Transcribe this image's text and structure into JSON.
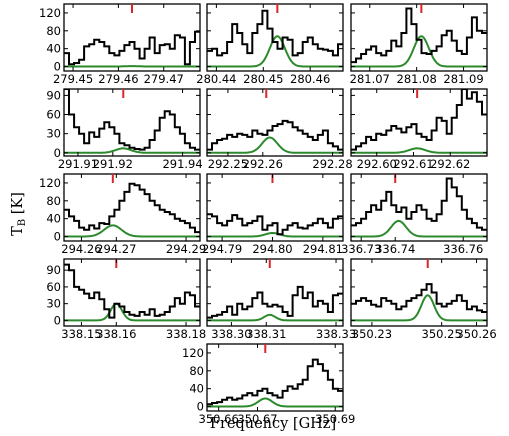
{
  "figure": {
    "ylabel_main": "T",
    "ylabel_sub": "B",
    "ylabel_unit": " [K]",
    "xlabel": "Frequency [GHz]"
  },
  "colors": {
    "spectrum": "#000000",
    "fit": "#2c8a2c",
    "marker": "#d8262c"
  },
  "chart_data": [
    {
      "type": "line",
      "xlim": [
        279.448,
        279.478
      ],
      "ylim": [
        -10,
        140
      ],
      "xticks": [
        "279.45",
        "279.46",
        "279.47"
      ],
      "yticks": [
        0,
        40,
        80,
        120
      ],
      "marker": 279.463,
      "fit": {
        "center": 279.463,
        "amp": 1,
        "width": 0.0015
      },
      "spectrum": [
        30,
        5,
        8,
        15,
        45,
        50,
        60,
        55,
        45,
        30,
        25,
        35,
        48,
        55,
        40,
        18,
        40,
        65,
        30,
        48,
        50,
        40,
        70,
        65,
        5,
        55,
        78
      ]
    },
    {
      "type": "line",
      "xlim": [
        280.438,
        280.467
      ],
      "ylim": [
        -10,
        140
      ],
      "marker": 280.453,
      "xticks": [
        "280.44",
        "280.45",
        "280.46"
      ],
      "yticks": [
        0,
        40,
        80,
        120
      ],
      "fit": {
        "center": 280.453,
        "amp": 68,
        "width": 0.0016
      },
      "spectrum": [
        35,
        40,
        25,
        30,
        55,
        95,
        75,
        50,
        30,
        75,
        95,
        125,
        85,
        55,
        40,
        65,
        60,
        25,
        30,
        55,
        65,
        50,
        40,
        38,
        35,
        25,
        50
      ]
    },
    {
      "type": "line",
      "xlim": [
        281.066,
        281.095
      ],
      "ylim": [
        -10,
        140
      ],
      "marker": 281.081,
      "xticks": [
        "281.07",
        "281.08",
        "281.09"
      ],
      "yticks": [
        0,
        40,
        80,
        120
      ],
      "fit": {
        "center": 281.081,
        "amp": 68,
        "width": 0.0016
      },
      "spectrum": [
        10,
        18,
        28,
        38,
        45,
        30,
        25,
        35,
        58,
        45,
        75,
        130,
        95,
        60,
        30,
        28,
        35,
        45,
        70,
        80,
        58,
        35,
        28,
        65,
        110,
        80,
        75
      ]
    },
    {
      "type": "line",
      "xlim": [
        291.906,
        291.945
      ],
      "ylim": [
        -5,
        100
      ],
      "marker": 291.923,
      "xticks": [
        "291.91",
        "291.92",
        "291.94"
      ],
      "yticks": [
        0,
        30,
        60,
        90
      ],
      "fit": {
        "center": 291.923,
        "amp": 7,
        "width": 0.0022
      },
      "spectrum": [
        100,
        60,
        40,
        30,
        15,
        32,
        25,
        38,
        48,
        40,
        30,
        15,
        12,
        8,
        6,
        5,
        8,
        20,
        35,
        55,
        65,
        60,
        40,
        30,
        15,
        8,
        5
      ]
    },
    {
      "type": "line",
      "xlim": [
        292.244,
        292.283
      ],
      "ylim": [
        -5,
        100
      ],
      "marker": 292.261,
      "xticks": [
        "292.25",
        "292.26",
        "292.28"
      ],
      "yticks": [
        0,
        30,
        60,
        90
      ],
      "fit": {
        "center": 292.262,
        "amp": 24,
        "width": 0.0022
      },
      "spectrum": [
        5,
        15,
        20,
        22,
        28,
        25,
        30,
        28,
        25,
        35,
        30,
        28,
        35,
        42,
        45,
        50,
        48,
        40,
        35,
        30,
        25,
        20,
        28,
        35,
        15,
        10,
        5
      ]
    },
    {
      "type": "line",
      "xlim": [
        292.593,
        292.63
      ],
      "ylim": [
        -5,
        100
      ],
      "marker": 292.611,
      "xticks": [
        "292.60",
        "292.61",
        "292.62"
      ],
      "yticks": [
        0,
        30,
        60,
        90
      ],
      "fit": {
        "center": 292.611,
        "amp": 7,
        "width": 0.0022
      },
      "spectrum": [
        5,
        10,
        15,
        25,
        20,
        30,
        28,
        35,
        42,
        38,
        32,
        40,
        45,
        30,
        25,
        20,
        35,
        55,
        50,
        30,
        55,
        75,
        100,
        85,
        95,
        80,
        60
      ]
    },
    {
      "type": "line",
      "xlim": [
        294.255,
        294.294
      ],
      "ylim": [
        -10,
        140
      ],
      "marker": 294.269,
      "xticks": [
        "294.26",
        "294.27",
        "294.29"
      ],
      "yticks": [
        0,
        40,
        80,
        120
      ],
      "fit": {
        "center": 294.269,
        "amp": 25,
        "width": 0.0025
      },
      "spectrum": [
        60,
        45,
        35,
        20,
        15,
        25,
        18,
        30,
        28,
        45,
        60,
        80,
        100,
        118,
        115,
        105,
        95,
        80,
        70,
        60,
        55,
        50,
        40,
        35,
        30,
        20,
        10
      ]
    },
    {
      "type": "line",
      "xlim": [
        294.787,
        294.814
      ],
      "ylim": [
        -10,
        140
      ],
      "marker": 294.8,
      "xticks": [
        "294.79",
        "294.80",
        "294.81"
      ],
      "yticks": [
        0,
        40,
        80,
        120
      ],
      "fit": {
        "center": 294.8,
        "amp": 8,
        "width": 0.0014
      },
      "spectrum": [
        50,
        45,
        30,
        25,
        35,
        48,
        40,
        25,
        30,
        35,
        45,
        15,
        25,
        30,
        5,
        15,
        25,
        30,
        20,
        18,
        25,
        30,
        40,
        30,
        20,
        40,
        45
      ]
    },
    {
      "type": "line",
      "xlim": [
        336.727,
        336.767
      ],
      "ylim": [
        -10,
        140
      ],
      "marker": 336.74,
      "xticks": [
        "336.73",
        "336.74",
        "336.76"
      ],
      "yticks": [
        0,
        40,
        80,
        120
      ],
      "fit": {
        "center": 336.741,
        "amp": 35,
        "width": 0.0022
      },
      "spectrum": [
        25,
        30,
        40,
        55,
        70,
        60,
        80,
        100,
        70,
        55,
        65,
        40,
        55,
        70,
        60,
        40,
        35,
        50,
        80,
        130,
        110,
        90,
        60,
        40,
        30,
        20,
        15
      ]
    },
    {
      "type": "line",
      "xlim": [
        338.145,
        338.184
      ],
      "ylim": [
        -10,
        110
      ],
      "marker": 338.16,
      "xticks": [
        "338.15",
        "338.16",
        "338.18"
      ],
      "yticks": [
        0,
        30,
        60,
        90
      ],
      "fit": {
        "center": 338.16,
        "amp": 30,
        "width": 0.0016
      },
      "spectrum": [
        100,
        90,
        60,
        55,
        48,
        40,
        50,
        38,
        20,
        5,
        30,
        25,
        15,
        10,
        8,
        15,
        10,
        20,
        8,
        10,
        15,
        25,
        40,
        30,
        50,
        45,
        25
      ]
    },
    {
      "type": "line",
      "xlim": [
        338.293,
        338.332
      ],
      "ylim": [
        -10,
        110
      ],
      "marker": 338.311,
      "xticks": [
        "338.30",
        "338.31",
        "338.33"
      ],
      "yticks": [
        0,
        30,
        60,
        90
      ],
      "fit": {
        "center": 338.311,
        "amp": 10,
        "width": 0.0016
      },
      "spectrum": [
        5,
        8,
        10,
        15,
        25,
        10,
        30,
        20,
        25,
        40,
        50,
        30,
        25,
        28,
        25,
        15,
        8,
        45,
        60,
        40,
        50,
        25,
        35,
        30,
        15,
        45,
        48
      ]
    },
    {
      "type": "line",
      "xlim": [
        350.224,
        350.263
      ],
      "ylim": [
        -10,
        110
      ],
      "marker": 350.246,
      "xticks": [
        "350.23",
        "350.25",
        "350.26"
      ],
      "yticks": [
        0,
        30,
        60,
        90
      ],
      "fit": {
        "center": 350.246,
        "amp": 45,
        "width": 0.0018
      },
      "spectrum": [
        30,
        35,
        40,
        35,
        28,
        25,
        40,
        35,
        30,
        20,
        25,
        35,
        40,
        45,
        55,
        65,
        50,
        30,
        25,
        30,
        35,
        45,
        35,
        20,
        25,
        18,
        15
      ]
    },
    {
      "type": "line",
      "xlim": [
        350.657,
        350.692
      ],
      "ylim": [
        -10,
        140
      ],
      "marker": 350.672,
      "xticks": [
        "350.66",
        "350.67",
        "350.69"
      ],
      "yticks": [
        0,
        40,
        80,
        120
      ],
      "fit": {
        "center": 350.672,
        "amp": 18,
        "width": 0.0018
      },
      "spectrum": [
        5,
        8,
        10,
        15,
        20,
        15,
        18,
        25,
        30,
        25,
        35,
        40,
        30,
        25,
        20,
        35,
        45,
        40,
        50,
        60,
        90,
        105,
        95,
        80,
        60,
        40,
        35
      ]
    }
  ]
}
